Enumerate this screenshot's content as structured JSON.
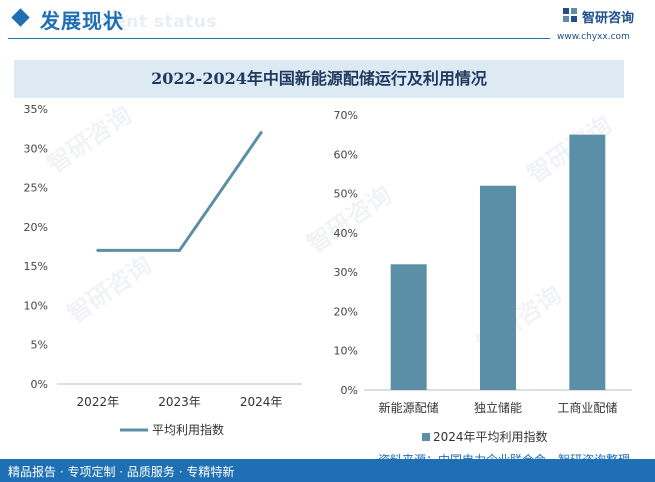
{
  "header": {
    "section_title": "发展现状",
    "section_title_en": "ment status",
    "brand_name": "智研咨询",
    "brand_url": "www.chyxx.com"
  },
  "colors": {
    "accent": "#1f6fb4",
    "series": "#5b8fa8"
  },
  "chart_title": "2022-2024年中国新能源配储运行及利用情况",
  "chart_data": [
    {
      "type": "line",
      "title": "",
      "categories": [
        "2022年",
        "2023年",
        "2024年"
      ],
      "series": [
        {
          "name": "平均利用指数",
          "values": [
            17,
            17,
            32
          ],
          "color": "#5b8fa8"
        }
      ],
      "ylim": [
        0,
        35
      ],
      "yticks": [
        "0%",
        "5%",
        "10%",
        "15%",
        "20%",
        "25%",
        "30%",
        "35%"
      ],
      "grid": false,
      "legend": "bottom"
    },
    {
      "type": "bar",
      "title": "",
      "categories": [
        "新能源配储",
        "独立储能",
        "工商业配储"
      ],
      "series": [
        {
          "name": "2024年平均利用指数",
          "values": [
            32,
            52,
            65
          ],
          "color": "#5b8fa8"
        }
      ],
      "ylim": [
        0,
        70
      ],
      "yticks": [
        "0%",
        "10%",
        "20%",
        "30%",
        "40%",
        "50%",
        "60%",
        "70%"
      ],
      "grid": false,
      "legend": "bottom"
    }
  ],
  "source": "资料来源：中国电力企业联合会、智研咨询整理",
  "footer": {
    "tagline": "精品报告 · 专项定制 · 品质服务 · 专精特新"
  },
  "watermark": "智研咨询"
}
